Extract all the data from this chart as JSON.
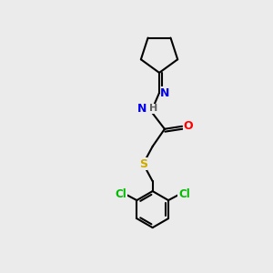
{
  "background_color": "#ebebeb",
  "atom_colors": {
    "C": "#000000",
    "H": "#606060",
    "N": "#0000ee",
    "O": "#ff0000",
    "S": "#ccaa00",
    "Cl": "#00bb00"
  },
  "bond_color": "#000000",
  "bond_width": 1.5,
  "figsize": [
    3.0,
    3.0
  ],
  "dpi": 100,
  "xlim": [
    0,
    10
  ],
  "ylim": [
    0,
    10
  ]
}
